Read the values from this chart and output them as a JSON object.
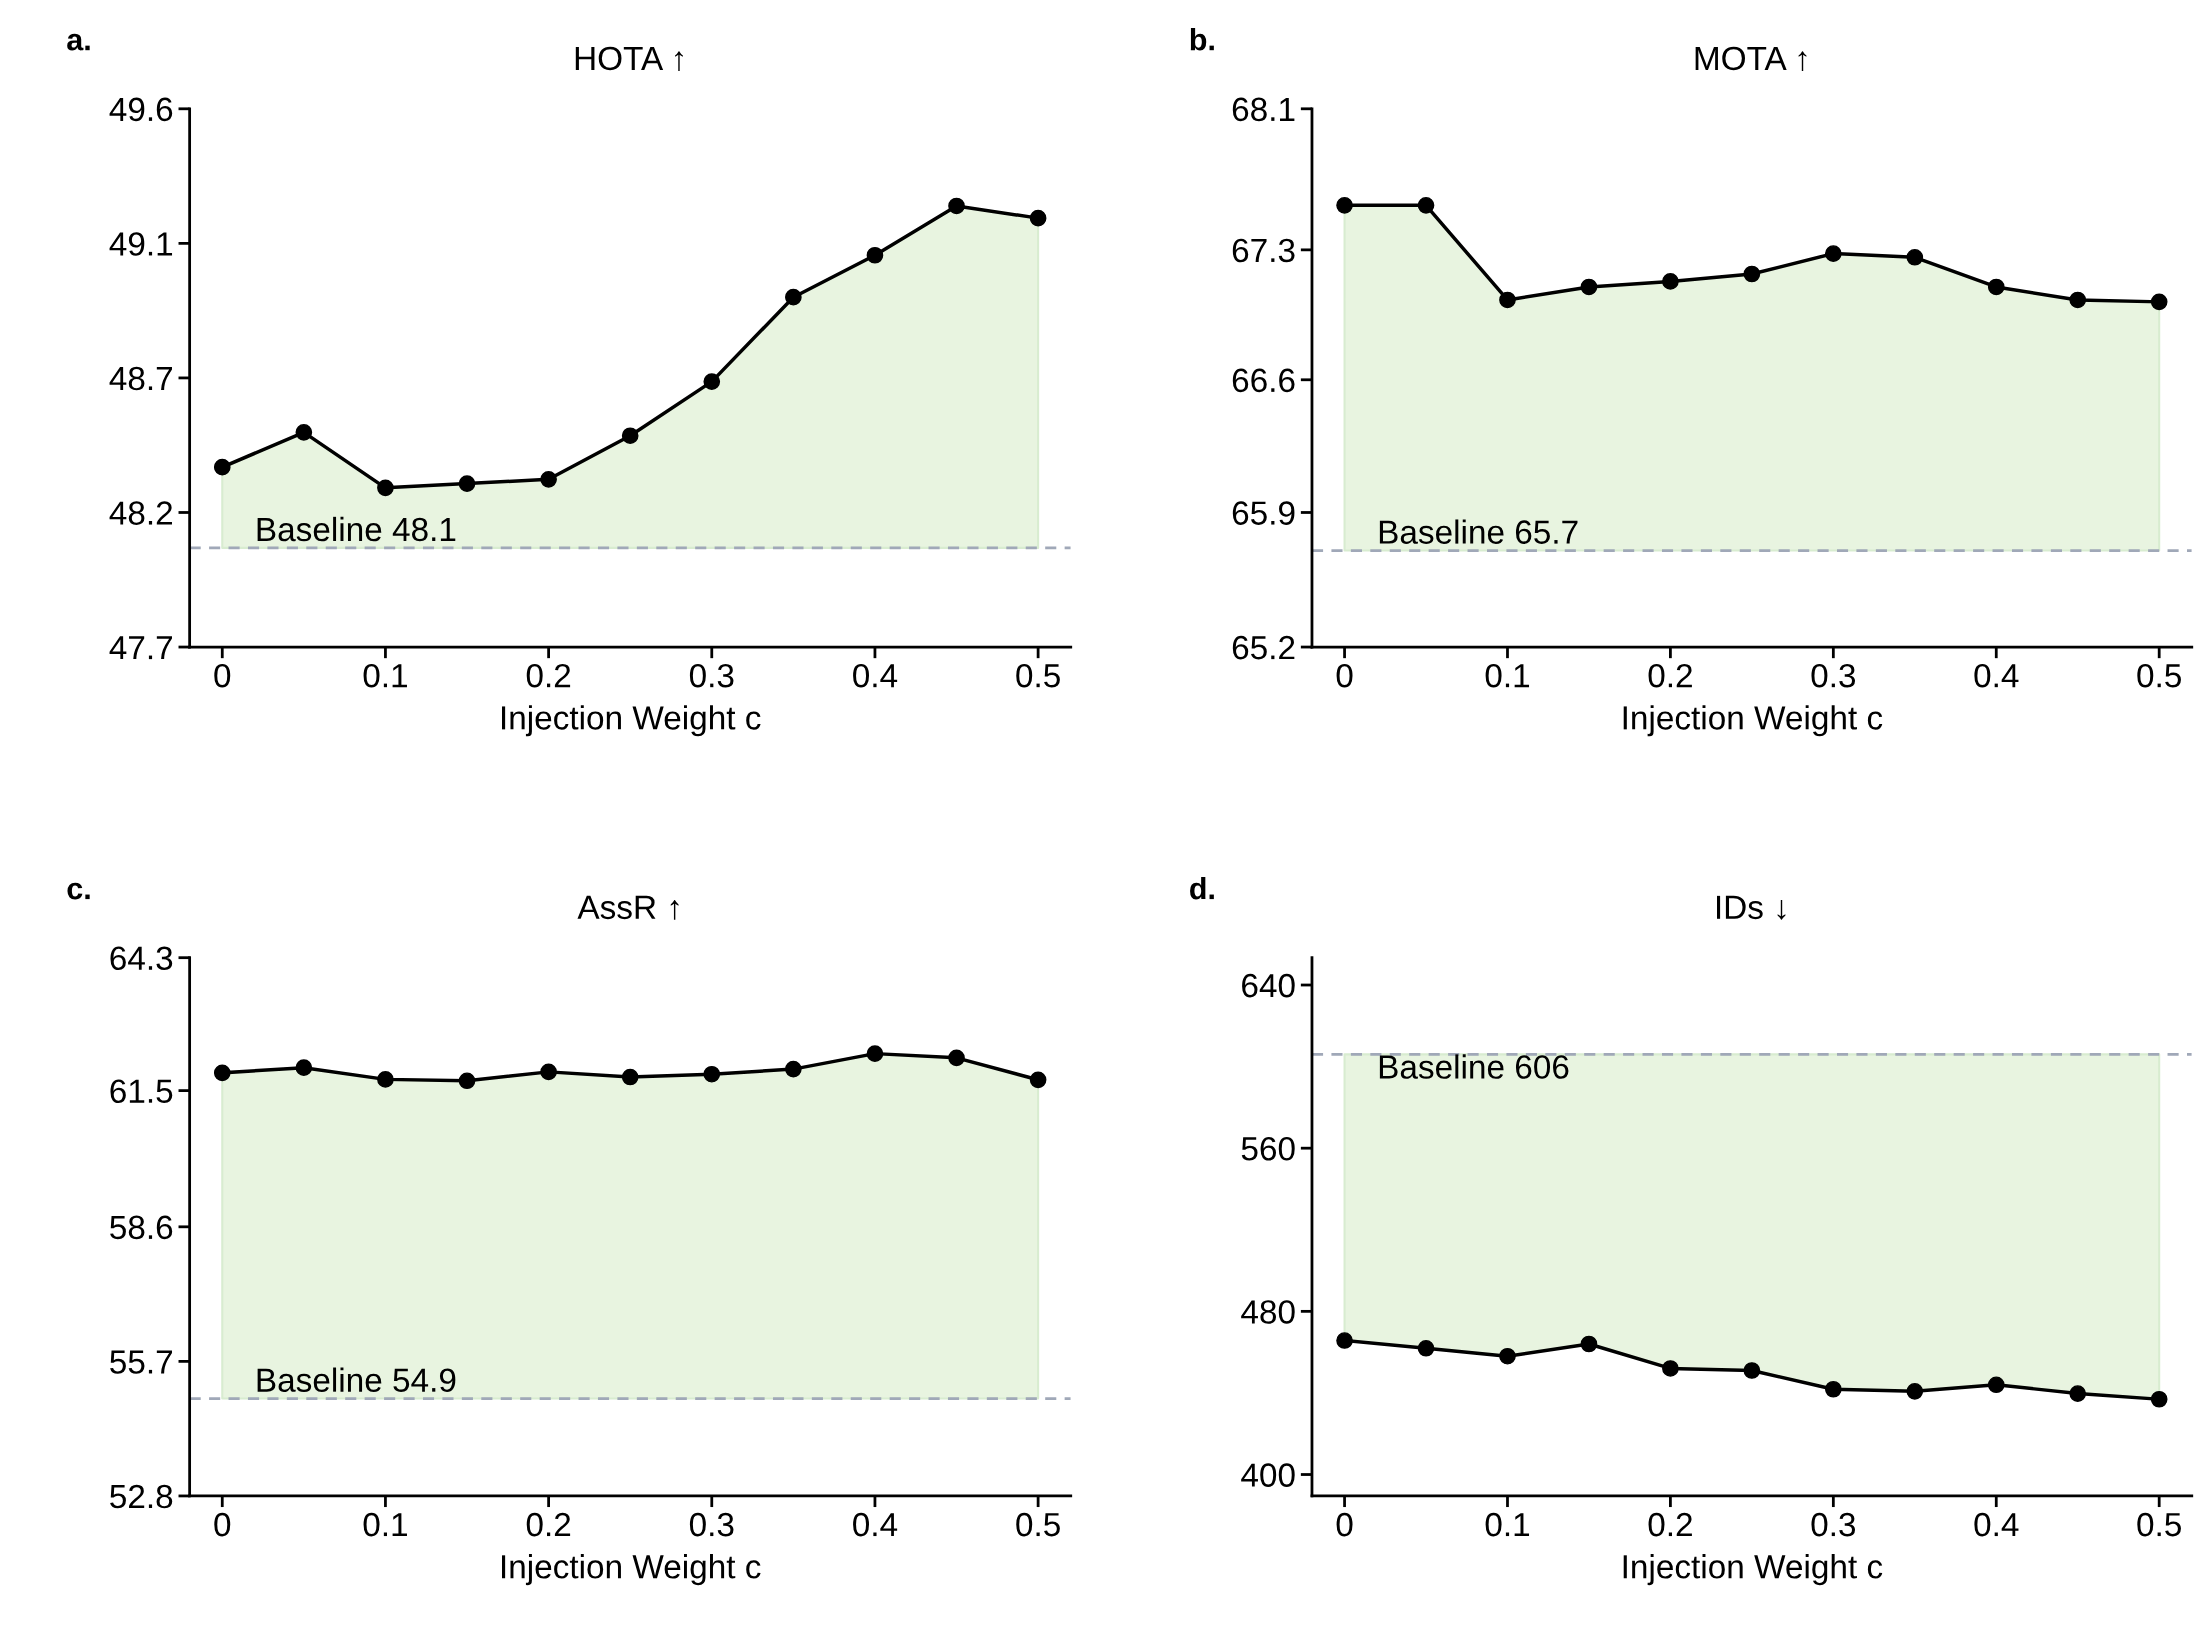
{
  "chart_data": [
    {
      "type": "line",
      "title": "HOTA ↑",
      "xlabel": "Injection Weight c",
      "annotations": [
        "a."
      ],
      "x": [
        0,
        0.05,
        0.1,
        0.15,
        0.2,
        0.25,
        0.3,
        0.35,
        0.4,
        0.45,
        0.5
      ],
      "series": [
        {
          "color": "#000000",
          "values": [
            48.335,
            48.458,
            48.262,
            48.277,
            48.292,
            48.446,
            48.637,
            48.935,
            49.083,
            49.257,
            49.214
          ],
          "lower": [
            48.05,
            48.05,
            48.05,
            48.05,
            48.05,
            48.05,
            48.05,
            48.05,
            48.05,
            48.05,
            48.05
          ],
          "upper": [
            48.335,
            48.458,
            48.262,
            48.277,
            48.292,
            48.446,
            48.637,
            48.935,
            49.083,
            49.257,
            49.214
          ]
        }
      ],
      "xlim": [
        -0.02,
        0.52
      ],
      "xticks": [
        0,
        0.1,
        0.2,
        0.3,
        0.4,
        0.5
      ],
      "ylim": [
        47.7,
        49.6
      ],
      "yticks": [
        47.7,
        {
          "value": 48.175,
          "label": "48.2"
        },
        {
          "value": 48.65,
          "label": "48.7"
        },
        {
          "value": 49.125,
          "label": "49.1"
        },
        49.6
      ],
      "ref_lines": [
        {
          "axis": "y",
          "value": 48.05,
          "label": "Baseline 48.1",
          "color": "#a0a8b8",
          "line_style": "dashed"
        }
      ],
      "marker": "circle",
      "grid": false,
      "legend": false
    },
    {
      "type": "line",
      "title": "MOTA ↑",
      "xlabel": "Injection Weight c",
      "annotations": [
        "b."
      ],
      "x": [
        0,
        0.05,
        0.1,
        0.15,
        0.2,
        0.25,
        0.3,
        0.35,
        0.4,
        0.45,
        0.5
      ],
      "series": [
        {
          "color": "#000000",
          "values": [
            67.58,
            67.58,
            67.07,
            67.14,
            67.17,
            67.21,
            67.32,
            67.3,
            67.14,
            67.07,
            67.06
          ],
          "lower": [
            65.72,
            65.72,
            65.72,
            65.72,
            65.72,
            65.72,
            65.72,
            65.72,
            65.72,
            65.72,
            65.72
          ],
          "upper": [
            67.58,
            67.58,
            67.07,
            67.14,
            67.17,
            67.21,
            67.32,
            67.3,
            67.14,
            67.07,
            67.06
          ]
        }
      ],
      "xlim": [
        -0.02,
        0.52
      ],
      "xticks": [
        0,
        0.1,
        0.2,
        0.3,
        0.4,
        0.5
      ],
      "ylim": [
        65.2,
        68.1
      ],
      "yticks": [
        65.2,
        {
          "value": 65.925,
          "label": "65.9"
        },
        {
          "value": 66.64,
          "label": "66.6"
        },
        {
          "value": 67.34,
          "label": "67.3"
        },
        68.1
      ],
      "ref_lines": [
        {
          "axis": "y",
          "value": 65.72,
          "label": "Baseline 65.7",
          "color": "#a0a8b8",
          "line_style": "dashed"
        }
      ],
      "marker": "circle",
      "grid": false,
      "legend": false
    },
    {
      "type": "line",
      "title": "AssR ↑",
      "xlabel": "Injection Weight c",
      "annotations": [
        "c."
      ],
      "x": [
        0,
        0.05,
        0.1,
        0.15,
        0.2,
        0.25,
        0.3,
        0.35,
        0.4,
        0.45,
        0.5
      ],
      "series": [
        {
          "color": "#000000",
          "values": [
            61.84,
            61.95,
            61.7,
            61.67,
            61.86,
            61.75,
            61.81,
            61.92,
            62.25,
            62.16,
            61.69
          ],
          "lower": [
            54.88,
            54.88,
            54.88,
            54.88,
            54.88,
            54.88,
            54.88,
            54.88,
            54.88,
            54.88,
            54.88
          ],
          "upper": [
            61.84,
            61.95,
            61.7,
            61.67,
            61.86,
            61.75,
            61.81,
            61.92,
            62.25,
            62.16,
            61.69
          ]
        }
      ],
      "xlim": [
        -0.02,
        0.52
      ],
      "xticks": [
        0,
        0.1,
        0.2,
        0.3,
        0.4,
        0.5
      ],
      "ylim": [
        52.8,
        64.3
      ],
      "yticks": [
        52.8,
        {
          "value": 55.675,
          "label": "55.7"
        },
        {
          "value": 58.55,
          "label": "58.6"
        },
        {
          "value": 61.46,
          "label": "61.5"
        },
        64.3
      ],
      "ref_lines": [
        {
          "axis": "y",
          "value": 54.88,
          "label": "Baseline 54.9",
          "color": "#a0a8b8",
          "line_style": "dashed"
        }
      ],
      "marker": "circle",
      "grid": false,
      "legend": false
    },
    {
      "type": "line",
      "title": "IDs ↓",
      "xlabel": "Injection Weight c",
      "annotations": [
        "d."
      ],
      "x": [
        0,
        0.05,
        0.1,
        0.15,
        0.2,
        0.25,
        0.3,
        0.35,
        0.4,
        0.45,
        0.5
      ],
      "series": [
        {
          "color": "#000000",
          "values": [
            465.7,
            461.9,
            458.0,
            464.0,
            452.0,
            451.0,
            441.8,
            440.8,
            444.0,
            439.7,
            436.9
          ],
          "lower": [
            465.7,
            461.9,
            458.0,
            464.0,
            452.0,
            451.0,
            441.8,
            440.8,
            444.0,
            439.7,
            436.9
          ],
          "upper": [
            606,
            606,
            606,
            606,
            606,
            606,
            606,
            606,
            606,
            606,
            606
          ]
        }
      ],
      "xlim": [
        -0.02,
        0.52
      ],
      "xticks": [
        0,
        0.1,
        0.2,
        0.3,
        0.4,
        0.5
      ],
      "ylim": [
        389.5,
        653.4
      ],
      "yticks": [
        400,
        480,
        560,
        640
      ],
      "ref_lines": [
        {
          "axis": "y",
          "value": 606,
          "label": "Baseline 606",
          "color": "#a0a8b8",
          "line_style": "dashed"
        }
      ],
      "marker": "circle",
      "grid": false,
      "legend": false
    }
  ]
}
